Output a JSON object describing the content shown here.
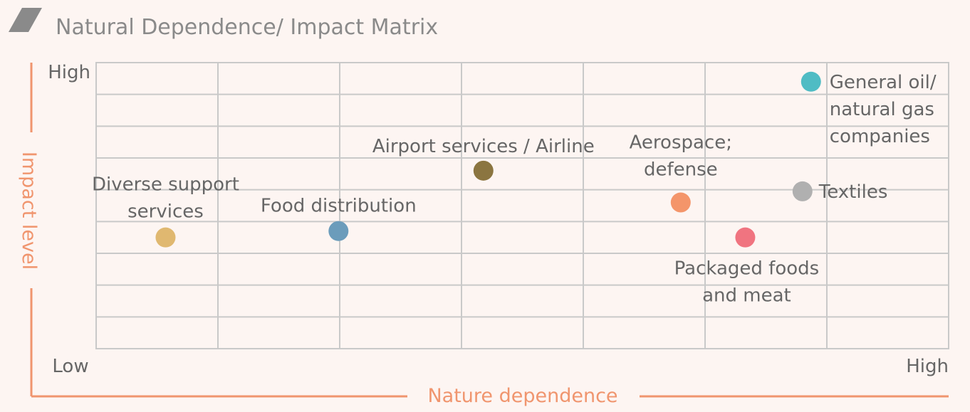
{
  "chart_data": {
    "type": "scatter",
    "title": "Natural Dependence/ Impact Matrix",
    "xlabel": "Nature dependence",
    "ylabel": "Impact level",
    "x_tick_labels": {
      "low": "Low",
      "high": "High"
    },
    "y_tick_labels": {
      "high": "High"
    },
    "xlim": [
      0,
      7
    ],
    "ylim": [
      0,
      9
    ],
    "grid": true,
    "points": [
      {
        "label": "Diverse support services",
        "label_lines": [
          "Diverse support",
          "services"
        ],
        "x": 0.57,
        "y": 3.5,
        "color": "#e0b870"
      },
      {
        "label": "Food distribution",
        "label_lines": [
          "Food distribution"
        ],
        "x": 1.99,
        "y": 3.7,
        "color": "#6b9cbb"
      },
      {
        "label": "Airport services / Airline",
        "label_lines": [
          "Airport services / Airline"
        ],
        "x": 3.18,
        "y": 5.6,
        "color": "#8b7540"
      },
      {
        "label": "Aerospace; defense",
        "label_lines": [
          "Aerospace;",
          "defense"
        ],
        "x": 4.8,
        "y": 4.6,
        "color": "#f4956a"
      },
      {
        "label": "Textiles",
        "label_lines": [
          "Textiles"
        ],
        "x": 5.8,
        "y": 4.95,
        "color": "#b0b0b0"
      },
      {
        "label": "Packaged foods and meat",
        "label_lines": [
          "Packaged foods",
          "and meat"
        ],
        "x": 5.33,
        "y": 3.5,
        "color": "#f07480"
      },
      {
        "label": "General oil/ natural gas companies",
        "label_lines": [
          "General oil/",
          "natural gas",
          "companies"
        ],
        "x": 5.87,
        "y": 8.4,
        "color": "#4fbcc4"
      }
    ]
  }
}
